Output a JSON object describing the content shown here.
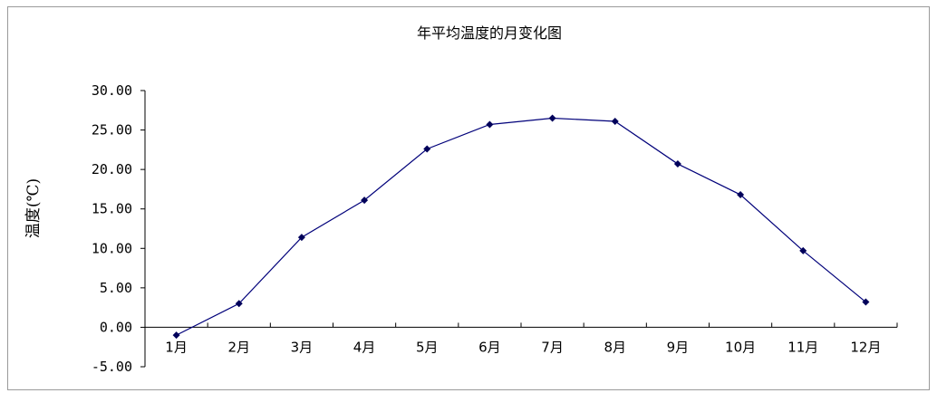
{
  "chart_data": {
    "type": "line",
    "title": "年平均温度的月变化图",
    "xlabel": "",
    "ylabel": "温度(℃)",
    "categories": [
      "1月",
      "2月",
      "3月",
      "4月",
      "5月",
      "6月",
      "7月",
      "8月",
      "9月",
      "10月",
      "11月",
      "12月"
    ],
    "series": [
      {
        "values": [
          -1.0,
          3.0,
          11.4,
          16.1,
          22.6,
          25.7,
          26.5,
          26.1,
          20.7,
          16.8,
          9.7,
          3.2
        ]
      }
    ],
    "ylim": [
      -5,
      30
    ],
    "yticks": [
      "-5.00",
      "0.00",
      "5.00",
      "10.00",
      "15.00",
      "20.00",
      "25.00",
      "30.00"
    ],
    "grid": false,
    "legend": "none",
    "line_color": "#00007a",
    "marker_color": "#00005a"
  }
}
